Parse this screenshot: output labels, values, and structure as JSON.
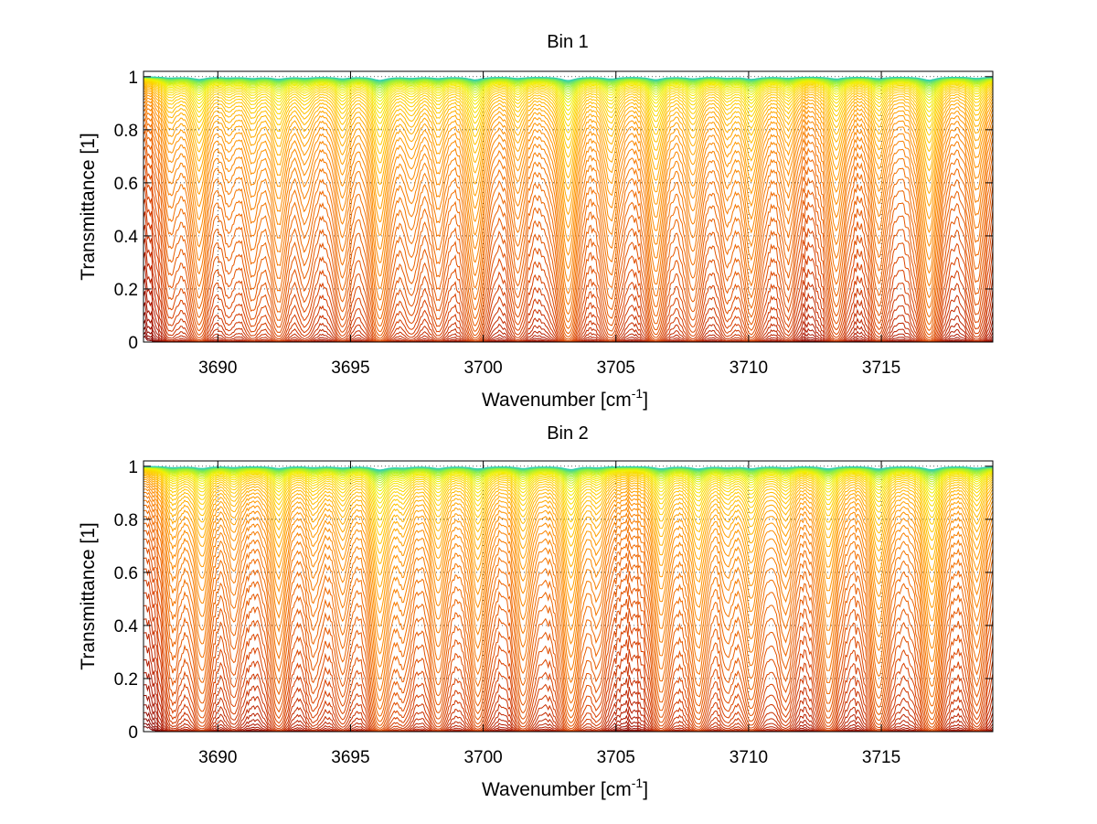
{
  "chart_data": [
    {
      "type": "line",
      "title": "Bin 1",
      "xlabel": "Wavenumber [cm",
      "xlabel_sup": "-1",
      "xlabel_end": "]",
      "ylabel": "Transmittance [1]",
      "xlim": [
        3687.2,
        3719.2
      ],
      "ylim": [
        0,
        1.02
      ],
      "xticks": [
        3690,
        3695,
        3700,
        3705,
        3710,
        3715
      ],
      "yticks": [
        0,
        0.2,
        0.4,
        0.6,
        0.8,
        1
      ],
      "ytick_labels": [
        "0",
        "0.2",
        "0.4",
        "0.6",
        "0.8",
        "1"
      ],
      "grid": "dotted",
      "num_series": 60,
      "colormap": [
        "#800000",
        "#b01800",
        "#d84000",
        "#f06a00",
        "#ff9400",
        "#ffc800",
        "#f0f000",
        "#90f040",
        "#30d0b0"
      ],
      "absorption_lines": [
        {
          "x": 3688.2,
          "depth": 0.35
        },
        {
          "x": 3689.3,
          "depth": 0.85
        },
        {
          "x": 3690.4,
          "depth": 0.3
        },
        {
          "x": 3691.3,
          "depth": 0.45
        },
        {
          "x": 3692.3,
          "depth": 0.75
        },
        {
          "x": 3693.3,
          "depth": 0.4
        },
        {
          "x": 3694.7,
          "depth": 0.6
        },
        {
          "x": 3696.1,
          "depth": 1.2
        },
        {
          "x": 3697.3,
          "depth": 0.4
        },
        {
          "x": 3698.3,
          "depth": 0.5
        },
        {
          "x": 3699.7,
          "depth": 1.0
        },
        {
          "x": 3701.3,
          "depth": 0.5
        },
        {
          "x": 3703.2,
          "depth": 1.3
        },
        {
          "x": 3704.8,
          "depth": 0.7
        },
        {
          "x": 3706.5,
          "depth": 1.0
        },
        {
          "x": 3707.9,
          "depth": 0.6
        },
        {
          "x": 3709.2,
          "depth": 0.4
        },
        {
          "x": 3710.1,
          "depth": 0.8
        },
        {
          "x": 3711.5,
          "depth": 0.45
        },
        {
          "x": 3713.3,
          "depth": 0.7
        },
        {
          "x": 3714.9,
          "depth": 0.6
        },
        {
          "x": 3716.8,
          "depth": 1.2
        },
        {
          "x": 3718.6,
          "depth": 0.5
        }
      ]
    },
    {
      "type": "line",
      "title": "Bin 2",
      "xlabel": "Wavenumber [cm",
      "xlabel_sup": "-1",
      "xlabel_end": "]",
      "ylabel": "Transmittance [1]",
      "xlim": [
        3687.2,
        3719.2
      ],
      "ylim": [
        0,
        1.02
      ],
      "xticks": [
        3690,
        3695,
        3700,
        3705,
        3710,
        3715
      ],
      "yticks": [
        0,
        0.2,
        0.4,
        0.6,
        0.8,
        1
      ],
      "ytick_labels": [
        "0",
        "0.2",
        "0.4",
        "0.6",
        "0.8",
        "1"
      ],
      "grid": "dotted",
      "num_series": 60,
      "colormap": [
        "#800000",
        "#b01800",
        "#d84000",
        "#f06a00",
        "#ff9400",
        "#ffc800",
        "#f0f000",
        "#90f040",
        "#30d0b0"
      ],
      "absorption_lines": [
        {
          "x": 3688.3,
          "depth": 0.4
        },
        {
          "x": 3689.4,
          "depth": 0.7
        },
        {
          "x": 3690.6,
          "depth": 0.35
        },
        {
          "x": 3692.3,
          "depth": 0.7
        },
        {
          "x": 3693.6,
          "depth": 0.35
        },
        {
          "x": 3694.7,
          "depth": 0.45
        },
        {
          "x": 3696.1,
          "depth": 1.2
        },
        {
          "x": 3697.0,
          "depth": 0.4
        },
        {
          "x": 3698.3,
          "depth": 0.7
        },
        {
          "x": 3699.8,
          "depth": 0.8
        },
        {
          "x": 3701.5,
          "depth": 0.7
        },
        {
          "x": 3703.3,
          "depth": 1.1
        },
        {
          "x": 3704.3,
          "depth": 0.4
        },
        {
          "x": 3706.7,
          "depth": 0.8
        },
        {
          "x": 3708.1,
          "depth": 0.8
        },
        {
          "x": 3709.2,
          "depth": 0.4
        },
        {
          "x": 3710.1,
          "depth": 0.7
        },
        {
          "x": 3711.4,
          "depth": 0.45
        },
        {
          "x": 3713.0,
          "depth": 0.8
        },
        {
          "x": 3714.9,
          "depth": 0.9
        },
        {
          "x": 3716.9,
          "depth": 1.2
        },
        {
          "x": 3718.6,
          "depth": 0.6
        }
      ]
    }
  ]
}
